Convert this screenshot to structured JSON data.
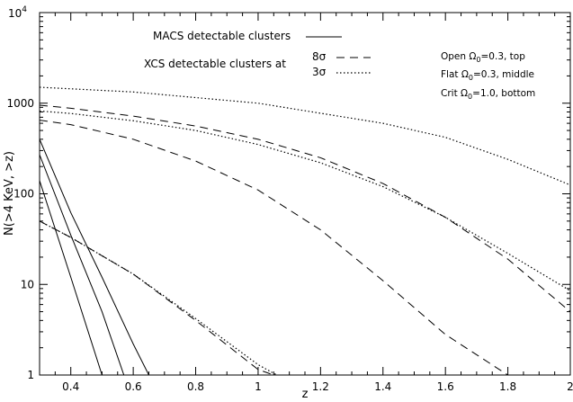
{
  "chart_data": {
    "type": "line",
    "xlabel": "z",
    "ylabel": "N(>4 KeV, >z)",
    "xlim": [
      0.3,
      2.0
    ],
    "ylim": [
      1,
      10000
    ],
    "yscale": "log",
    "grid": false,
    "x_ticks": [
      {
        "value": 0.4,
        "label": "0.4"
      },
      {
        "value": 0.6,
        "label": "0.6"
      },
      {
        "value": 0.8,
        "label": "0.8"
      },
      {
        "value": 1.0,
        "label": "1"
      },
      {
        "value": 1.2,
        "label": "1.2"
      },
      {
        "value": 1.4,
        "label": "1.4"
      },
      {
        "value": 1.6,
        "label": "1.6"
      },
      {
        "value": 1.8,
        "label": "1.8"
      },
      {
        "value": 2.0,
        "label": "2"
      }
    ],
    "y_ticks": [
      {
        "value": 1,
        "label": "1"
      },
      {
        "value": 10,
        "label": "10"
      },
      {
        "value": 100,
        "label": "100"
      },
      {
        "value": 1000,
        "label": "1000"
      }
    ],
    "y_top_label": {
      "base": "10",
      "exponent": "4"
    },
    "legend": {
      "placement": "top-center",
      "macs_label": "MACS detectable clusters",
      "xcs_label": "XCS detectable clusters at",
      "sigma8_label": "8σ",
      "sigma3_label": "3σ"
    },
    "notes": [
      {
        "prefix": "Open Ω",
        "sub": "0",
        "suffix": "=0.3, top"
      },
      {
        "prefix": "Flat Ω",
        "sub": "0",
        "suffix": "=0.3, middle"
      },
      {
        "prefix": "Crit Ω",
        "sub": "0",
        "suffix": "=1.0, bottom"
      }
    ],
    "series": [
      {
        "group": "MACS",
        "style": "solid",
        "x": [
          0.3,
          0.4,
          0.5,
          0.6,
          0.65
        ],
        "y": [
          400,
          62,
          12,
          2.2,
          1
        ]
      },
      {
        "group": "MACS",
        "style": "solid",
        "x": [
          0.3,
          0.4,
          0.5,
          0.57
        ],
        "y": [
          270,
          35,
          5,
          1
        ]
      },
      {
        "group": "MACS",
        "style": "solid",
        "x": [
          0.3,
          0.4,
          0.5
        ],
        "y": [
          140,
          12,
          1
        ]
      },
      {
        "group": "XCS 8σ",
        "style": "dashed",
        "x": [
          0.3,
          0.4,
          0.6,
          0.8,
          1.0,
          1.2,
          1.4,
          1.6,
          1.8,
          2.0
        ],
        "y": [
          950,
          880,
          720,
          560,
          400,
          250,
          130,
          55,
          19,
          5
        ]
      },
      {
        "group": "XCS 8σ",
        "style": "dashed",
        "x": [
          0.3,
          0.4,
          0.6,
          0.8,
          1.0,
          1.2,
          1.4,
          1.6,
          1.8
        ],
        "y": [
          650,
          580,
          400,
          230,
          110,
          40,
          11,
          2.8,
          1
        ]
      },
      {
        "group": "XCS 8σ",
        "style": "dashed",
        "x": [
          0.3,
          0.4,
          0.6,
          0.8,
          1.0,
          1.05
        ],
        "y": [
          50,
          33,
          13,
          4,
          1.15,
          1
        ]
      },
      {
        "group": "XCS 3σ",
        "style": "dotted",
        "x": [
          0.3,
          0.6,
          1.0,
          1.4,
          1.6,
          1.8,
          2.0
        ],
        "y": [
          1500,
          1330,
          1000,
          600,
          420,
          240,
          125
        ]
      },
      {
        "group": "XCS 3σ",
        "style": "dotted",
        "x": [
          0.3,
          0.4,
          0.6,
          0.8,
          1.0,
          1.2,
          1.4,
          1.6,
          1.8,
          2.0
        ],
        "y": [
          820,
          770,
          640,
          500,
          350,
          220,
          120,
          55,
          22,
          8.5
        ]
      },
      {
        "group": "XCS 3σ",
        "style": "dotted",
        "x": [
          0.3,
          0.4,
          0.6,
          0.8,
          1.0,
          1.06
        ],
        "y": [
          50,
          33,
          13,
          4.2,
          1.3,
          1
        ]
      }
    ]
  }
}
